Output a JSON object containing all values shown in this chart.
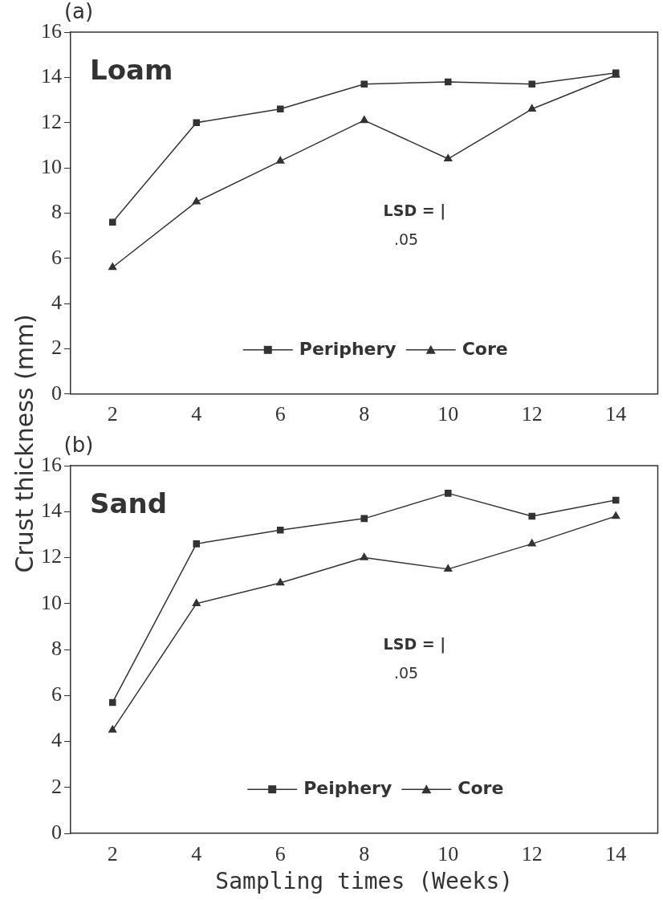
{
  "chart_data": [
    {
      "type": "line",
      "ylabel": "Crust thickness (mm)",
      "annotations": [
        "(a)",
        "Loam",
        "LSD = |",
        ".05"
      ],
      "x": [
        2,
        4,
        6,
        8,
        10,
        12,
        14
      ],
      "series": [
        {
          "name": "Periphery",
          "color": "#333333",
          "marker": "square",
          "values": [
            7.6,
            12.0,
            12.6,
            13.7,
            13.8,
            13.7,
            14.2
          ]
        },
        {
          "name": "Core",
          "color": "#333333",
          "marker": "triangle",
          "values": [
            5.6,
            8.5,
            10.3,
            12.1,
            10.4,
            12.6,
            14.1
          ]
        }
      ],
      "xlim": [
        1,
        15
      ],
      "xticks": [
        2,
        4,
        6,
        8,
        10,
        12,
        14
      ],
      "ylim": [
        0,
        16
      ],
      "yticks": [
        0,
        2,
        4,
        6,
        8,
        10,
        12,
        14,
        16
      ],
      "grid": false,
      "legend": "bottom",
      "line_style": "solid"
    },
    {
      "type": "line",
      "xlabel": "Sampling times (Weeks)",
      "annotations": [
        "(b)",
        "Sand",
        "LSD = |",
        ".05"
      ],
      "x": [
        2,
        4,
        6,
        8,
        10,
        12,
        14
      ],
      "series": [
        {
          "name": "Peiphery",
          "color": "#333333",
          "marker": "square",
          "values": [
            5.7,
            12.6,
            13.2,
            13.7,
            14.8,
            13.8,
            14.5
          ]
        },
        {
          "name": "Core",
          "color": "#333333",
          "marker": "triangle",
          "values": [
            4.5,
            10.0,
            10.9,
            12.0,
            11.5,
            12.6,
            13.8
          ]
        }
      ],
      "xlim": [
        1,
        15
      ],
      "xticks": [
        2,
        4,
        6,
        8,
        10,
        12,
        14
      ],
      "ylim": [
        0,
        16
      ],
      "yticks": [
        0,
        2,
        4,
        6,
        8,
        10,
        12,
        14,
        16
      ],
      "grid": false,
      "legend": "bottom",
      "line_style": "solid"
    }
  ]
}
